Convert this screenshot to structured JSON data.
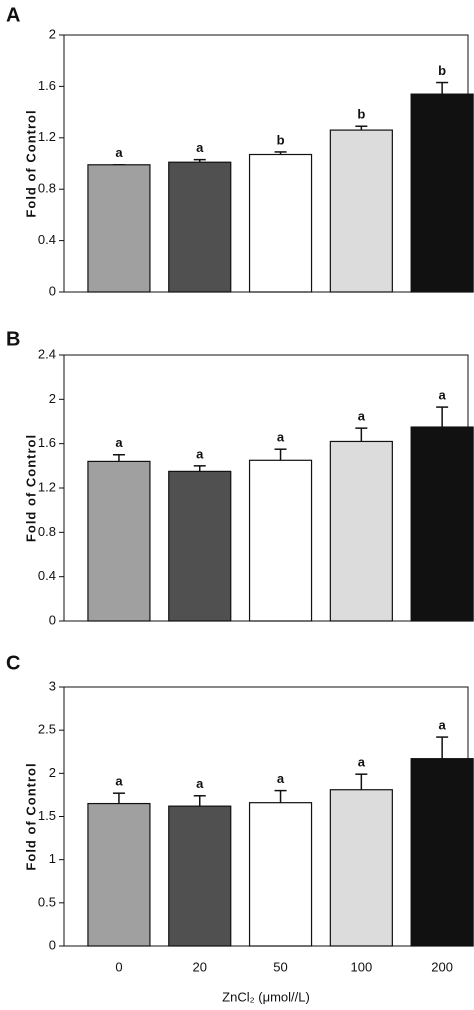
{
  "chart_data": [
    {
      "type": "bar",
      "panel": "A",
      "ylabel": "Fold of Control",
      "categories": [
        null,
        null,
        null,
        null,
        null
      ],
      "values": [
        0.99,
        1.01,
        1.07,
        1.26,
        1.54
      ],
      "errors": [
        0,
        0.02,
        0.02,
        0.03,
        0.09
      ],
      "letters": [
        "a",
        "a",
        "b",
        "b",
        "b"
      ],
      "colors": [
        "#a0a0a0",
        "#505050",
        "#ffffff",
        "#dcdcdc",
        "#111111"
      ],
      "ylim": [
        0,
        2
      ],
      "yticks": [
        0,
        0.4,
        0.8,
        1.2,
        1.6,
        2
      ]
    },
    {
      "type": "bar",
      "panel": "B",
      "ylabel": "Fold of Control",
      "categories": [
        null,
        null,
        null,
        null,
        null
      ],
      "values": [
        1.44,
        1.35,
        1.45,
        1.62,
        1.75
      ],
      "errors": [
        0.06,
        0.05,
        0.1,
        0.12,
        0.18
      ],
      "letters": [
        "a",
        "a",
        "a",
        "a",
        "a"
      ],
      "colors": [
        "#a0a0a0",
        "#505050",
        "#ffffff",
        "#dcdcdc",
        "#111111"
      ],
      "ylim": [
        0,
        2.4
      ],
      "yticks": [
        0,
        0.4,
        0.8,
        1.2,
        1.6,
        2,
        2.4
      ]
    },
    {
      "type": "bar",
      "panel": "C",
      "ylabel": "Fold of Control",
      "xlabel": "ZnCl₂ (μmol//L)",
      "categories": [
        "0",
        "20",
        "50",
        "100",
        "200"
      ],
      "values": [
        1.65,
        1.62,
        1.66,
        1.81,
        2.17
      ],
      "errors": [
        0.12,
        0.12,
        0.14,
        0.18,
        0.25
      ],
      "letters": [
        "a",
        "a",
        "a",
        "a",
        "a"
      ],
      "colors": [
        "#a0a0a0",
        "#505050",
        "#ffffff",
        "#dcdcdc",
        "#111111"
      ],
      "ylim": [
        0,
        3
      ],
      "yticks": [
        0,
        0.5,
        1,
        1.5,
        2,
        2.5,
        3
      ]
    }
  ]
}
